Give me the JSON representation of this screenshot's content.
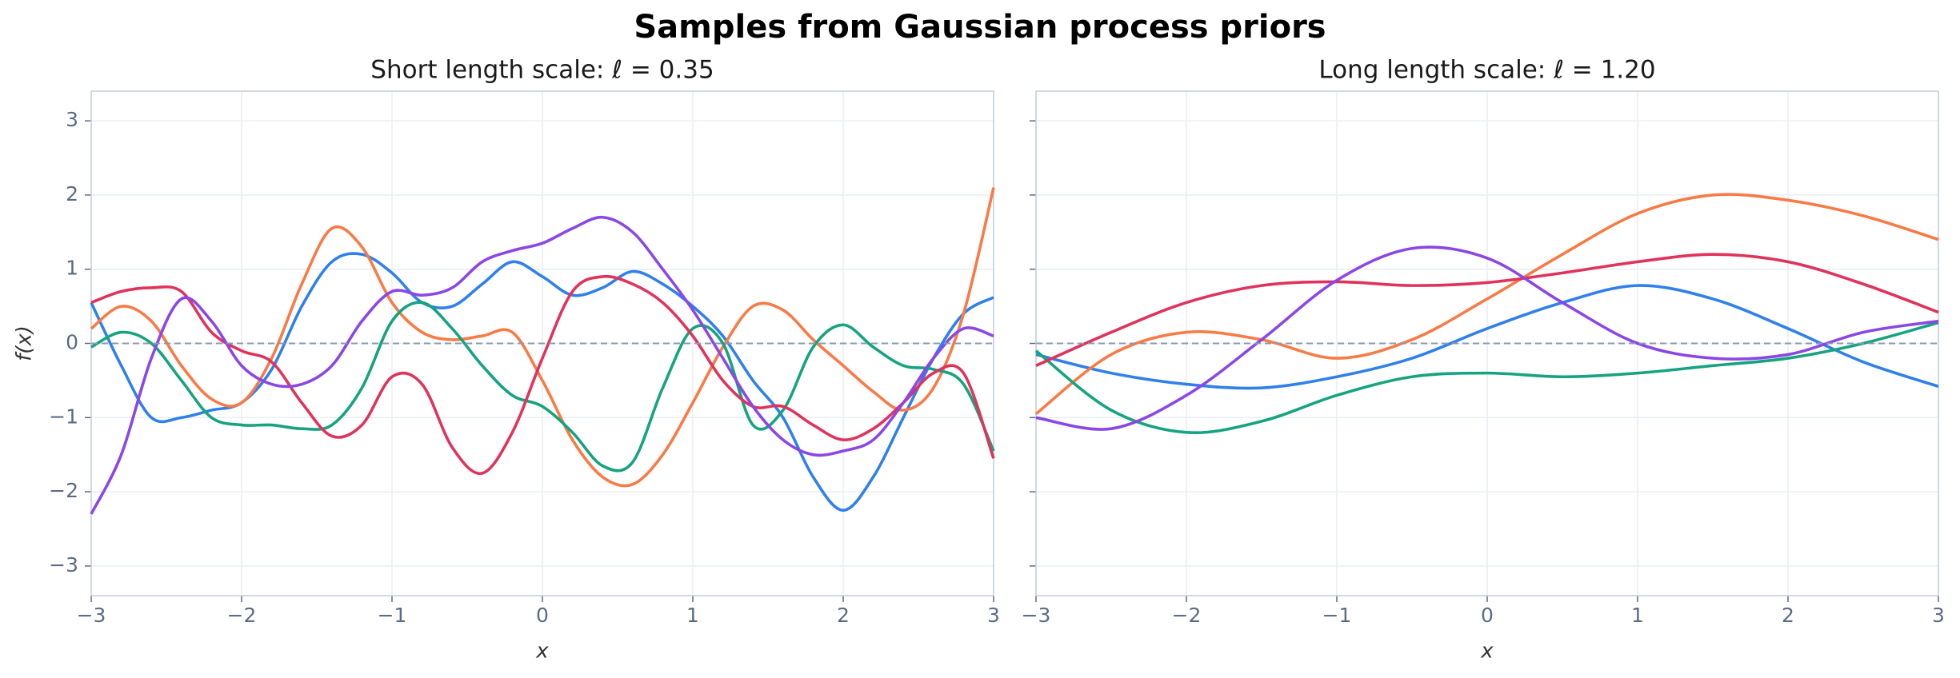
{
  "title": "Samples from Gaussian process priors",
  "chart_data": [
    {
      "type": "line",
      "title": "Short length scale: ℓ = 0.35",
      "xlabel": "x",
      "ylabel": "f(x)",
      "x": [
        -3,
        -2.8,
        -2.6,
        -2.4,
        -2.2,
        -2,
        -1.8,
        -1.6,
        -1.4,
        -1.2,
        -1,
        -0.8,
        -0.6,
        -0.4,
        -0.2,
        0,
        0.2,
        0.4,
        0.6,
        0.8,
        1,
        1.2,
        1.4,
        1.6,
        1.8,
        2,
        2.2,
        2.4,
        2.6,
        2.8,
        3
      ],
      "series": [
        {
          "color": "#2f80ed",
          "values": [
            0.55,
            -0.3,
            -1.0,
            -1.0,
            -0.9,
            -0.8,
            -0.35,
            0.5,
            1.1,
            1.2,
            0.95,
            0.55,
            0.5,
            0.8,
            1.1,
            0.9,
            0.65,
            0.75,
            0.97,
            0.8,
            0.5,
            0.1,
            -0.5,
            -1.0,
            -1.8,
            -2.25,
            -1.8,
            -1.0,
            -0.2,
            0.4,
            0.62
          ]
        },
        {
          "color": "#f97a45",
          "values": [
            0.2,
            0.5,
            0.3,
            -0.3,
            -0.75,
            -0.8,
            -0.2,
            0.8,
            1.55,
            1.3,
            0.55,
            0.15,
            0.05,
            0.1,
            0.15,
            -0.5,
            -1.3,
            -1.8,
            -1.9,
            -1.5,
            -0.8,
            -0.05,
            0.5,
            0.45,
            0.05,
            -0.3,
            -0.65,
            -0.9,
            -0.6,
            0.4,
            2.1
          ]
        },
        {
          "color": "#16a37f",
          "values": [
            -0.05,
            0.15,
            0.0,
            -0.5,
            -1.0,
            -1.1,
            -1.1,
            -1.15,
            -1.1,
            -0.6,
            0.3,
            0.55,
            0.2,
            -0.3,
            -0.7,
            -0.85,
            -1.2,
            -1.65,
            -1.6,
            -0.6,
            0.2,
            0.0,
            -1.1,
            -0.9,
            -0.05,
            0.25,
            -0.05,
            -0.3,
            -0.35,
            -0.55,
            -1.45
          ]
        },
        {
          "color": "#e0335c",
          "values": [
            0.55,
            0.7,
            0.75,
            0.7,
            0.15,
            -0.1,
            -0.25,
            -0.8,
            -1.25,
            -1.1,
            -0.45,
            -0.55,
            -1.4,
            -1.75,
            -1.2,
            -0.2,
            0.7,
            0.9,
            0.8,
            0.55,
            0.1,
            -0.5,
            -0.85,
            -0.85,
            -1.1,
            -1.3,
            -1.15,
            -0.8,
            -0.4,
            -0.4,
            -1.55
          ]
        },
        {
          "color": "#8b47e6",
          "values": [
            -2.3,
            -1.5,
            -0.2,
            0.6,
            0.3,
            -0.3,
            -0.55,
            -0.55,
            -0.3,
            0.3,
            0.7,
            0.65,
            0.75,
            1.1,
            1.25,
            1.35,
            1.55,
            1.7,
            1.5,
            1.0,
            0.45,
            -0.2,
            -0.85,
            -1.3,
            -1.5,
            -1.45,
            -1.3,
            -0.8,
            -0.2,
            0.2,
            0.1
          ]
        }
      ],
      "xlim": [
        -3,
        3
      ],
      "ylim": [
        -3.4,
        3.4
      ],
      "xticks": [
        {
          "value": -3,
          "label": "−3"
        },
        {
          "value": -2,
          "label": "−2"
        },
        {
          "value": -1,
          "label": "−1"
        },
        0,
        1,
        2,
        3
      ],
      "yticks": [
        {
          "value": -3,
          "label": "−3"
        },
        {
          "value": -2,
          "label": "−2"
        },
        {
          "value": -1,
          "label": "−1"
        },
        0,
        1,
        2,
        3
      ],
      "hline": 0,
      "grid": true
    },
    {
      "type": "line",
      "title": "Long length scale: ℓ = 1.20",
      "xlabel": "x",
      "x": [
        -3,
        -2.5,
        -2,
        -1.5,
        -1,
        -0.5,
        0,
        0.5,
        1,
        1.5,
        2,
        2.5,
        3
      ],
      "series": [
        {
          "color": "#2f80ed",
          "values": [
            -0.15,
            -0.4,
            -0.55,
            -0.6,
            -0.45,
            -0.2,
            0.2,
            0.55,
            0.78,
            0.6,
            0.2,
            -0.25,
            -0.58
          ]
        },
        {
          "color": "#f97a45",
          "values": [
            -0.95,
            -0.15,
            0.15,
            0.05,
            -0.2,
            0.05,
            0.6,
            1.2,
            1.75,
            2.0,
            1.93,
            1.72,
            1.4
          ]
        },
        {
          "color": "#16a37f",
          "values": [
            -0.1,
            -0.9,
            -1.2,
            -1.05,
            -0.7,
            -0.45,
            -0.4,
            -0.45,
            -0.4,
            -0.3,
            -0.2,
            0.0,
            0.28
          ]
        },
        {
          "color": "#e0335c",
          "values": [
            -0.3,
            0.15,
            0.55,
            0.78,
            0.83,
            0.78,
            0.82,
            0.95,
            1.1,
            1.2,
            1.1,
            0.8,
            0.42
          ]
        },
        {
          "color": "#8b47e6",
          "values": [
            -1.0,
            -1.15,
            -0.7,
            0.05,
            0.85,
            1.28,
            1.15,
            0.55,
            0.0,
            -0.2,
            -0.15,
            0.15,
            0.3
          ]
        }
      ],
      "xlim": [
        -3,
        3
      ],
      "ylim": [
        -3.4,
        3.4
      ],
      "xticks": [
        {
          "value": -3,
          "label": "−3"
        },
        {
          "value": -2,
          "label": "−2"
        },
        {
          "value": -1,
          "label": "−1"
        },
        0,
        1,
        2,
        3
      ],
      "yticks": [
        -3,
        -2,
        -1,
        0,
        1,
        2,
        3
      ],
      "hline": 0,
      "grid": true
    }
  ]
}
